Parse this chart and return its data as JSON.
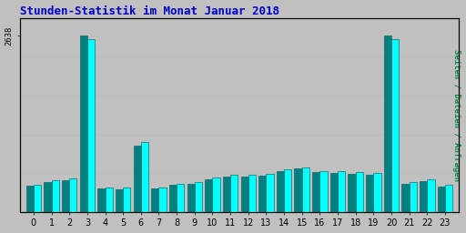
{
  "title": "Stunden-Statistik im Monat Januar 2018",
  "title_color": "#0000CC",
  "ylabel": "Seiten / Dateien / Anfragen",
  "ylabel_color": "#008844",
  "background_color": "#C0C0C0",
  "plot_bg_color": "#C0C0C0",
  "bar_color_cyan": "#00FFFF",
  "bar_color_teal": "#008080",
  "hours": [
    0,
    1,
    2,
    3,
    4,
    5,
    6,
    7,
    8,
    9,
    10,
    11,
    12,
    13,
    14,
    15,
    16,
    17,
    18,
    19,
    20,
    21,
    22,
    23
  ],
  "seiten": [
    390,
    450,
    470,
    2638,
    350,
    340,
    990,
    345,
    400,
    420,
    490,
    530,
    530,
    540,
    610,
    650,
    595,
    580,
    570,
    560,
    2638,
    420,
    460,
    385
  ],
  "anfragen": [
    410,
    475,
    500,
    2590,
    370,
    360,
    1040,
    370,
    425,
    445,
    515,
    555,
    555,
    565,
    635,
    670,
    615,
    605,
    595,
    580,
    2590,
    445,
    485,
    410
  ],
  "ymax": 2900,
  "ytick_value": 2638,
  "ytick_label": "2638",
  "grid_color": "#AAAAAA",
  "grid_count": 5
}
